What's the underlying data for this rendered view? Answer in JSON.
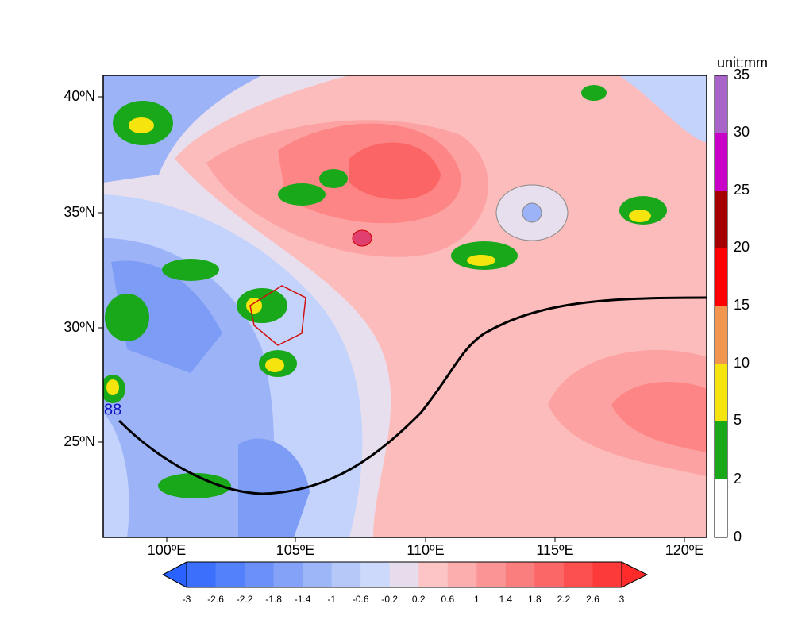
{
  "map": {
    "lat_labels": [
      "40ºN",
      "35ºN",
      "30ºN",
      "25ºN"
    ],
    "lon_labels": [
      "100ºE",
      "105ºE",
      "110ºE",
      "115ºE",
      "120ºE"
    ],
    "annotation": "88"
  },
  "colorbar_right": {
    "title": "unit:mm",
    "labels": [
      "0",
      "2",
      "5",
      "10",
      "15",
      "20",
      "25",
      "30",
      "35"
    ]
  },
  "colorbar_bottom": {
    "labels": [
      "-3",
      "-2.6",
      "-2.2",
      "-1.8",
      "-1.4",
      "-1",
      "-0.6",
      "-0.2",
      "0.2",
      "0.6",
      "1",
      "1.4",
      "1.8",
      "2.2",
      "2.6",
      "3"
    ]
  }
}
